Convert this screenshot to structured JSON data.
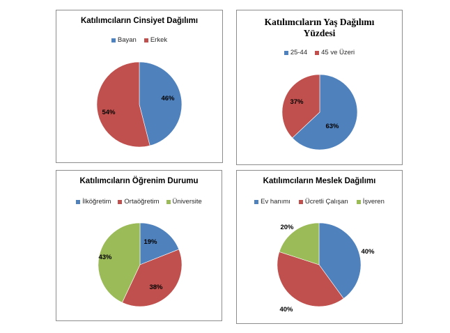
{
  "chart_data": [
    {
      "type": "pie",
      "title": "Katılımcıların Cinsiyet Dağılımı",
      "legend_position": "top",
      "categories": [
        "Bayan",
        "Erkek"
      ],
      "values": [
        46,
        54
      ],
      "data_labels": [
        "46%",
        "54%"
      ],
      "colors": [
        "#4f81bd",
        "#c0504d"
      ]
    },
    {
      "type": "pie",
      "title": "Katılımcıların Yaş Dağılımı Yüzdesi",
      "legend_position": "top",
      "categories": [
        "25-44",
        "45 ve Üzeri"
      ],
      "values": [
        63,
        37
      ],
      "data_labels": [
        "63%",
        "37%"
      ],
      "colors": [
        "#4f81bd",
        "#c0504d"
      ]
    },
    {
      "type": "pie",
      "title": "Katılımcıların Öğrenim Durumu",
      "legend_position": "top",
      "categories": [
        "İlköğretim",
        "Ortaöğretim",
        "Üniversite"
      ],
      "values": [
        19,
        38,
        43
      ],
      "data_labels": [
        "19%",
        "38%",
        "43%"
      ],
      "colors": [
        "#4f81bd",
        "#c0504d",
        "#9bbb59"
      ]
    },
    {
      "type": "pie",
      "title": "Katılımcıların Meslek Dağılımı",
      "legend_position": "top",
      "categories": [
        "Ev hanımı",
        "Ücretli Çalışan",
        "İşveren"
      ],
      "values": [
        40,
        40,
        20
      ],
      "data_labels": [
        "40%",
        "40%",
        "20%"
      ],
      "colors": [
        "#4f81bd",
        "#c0504d",
        "#9bbb59"
      ]
    }
  ]
}
